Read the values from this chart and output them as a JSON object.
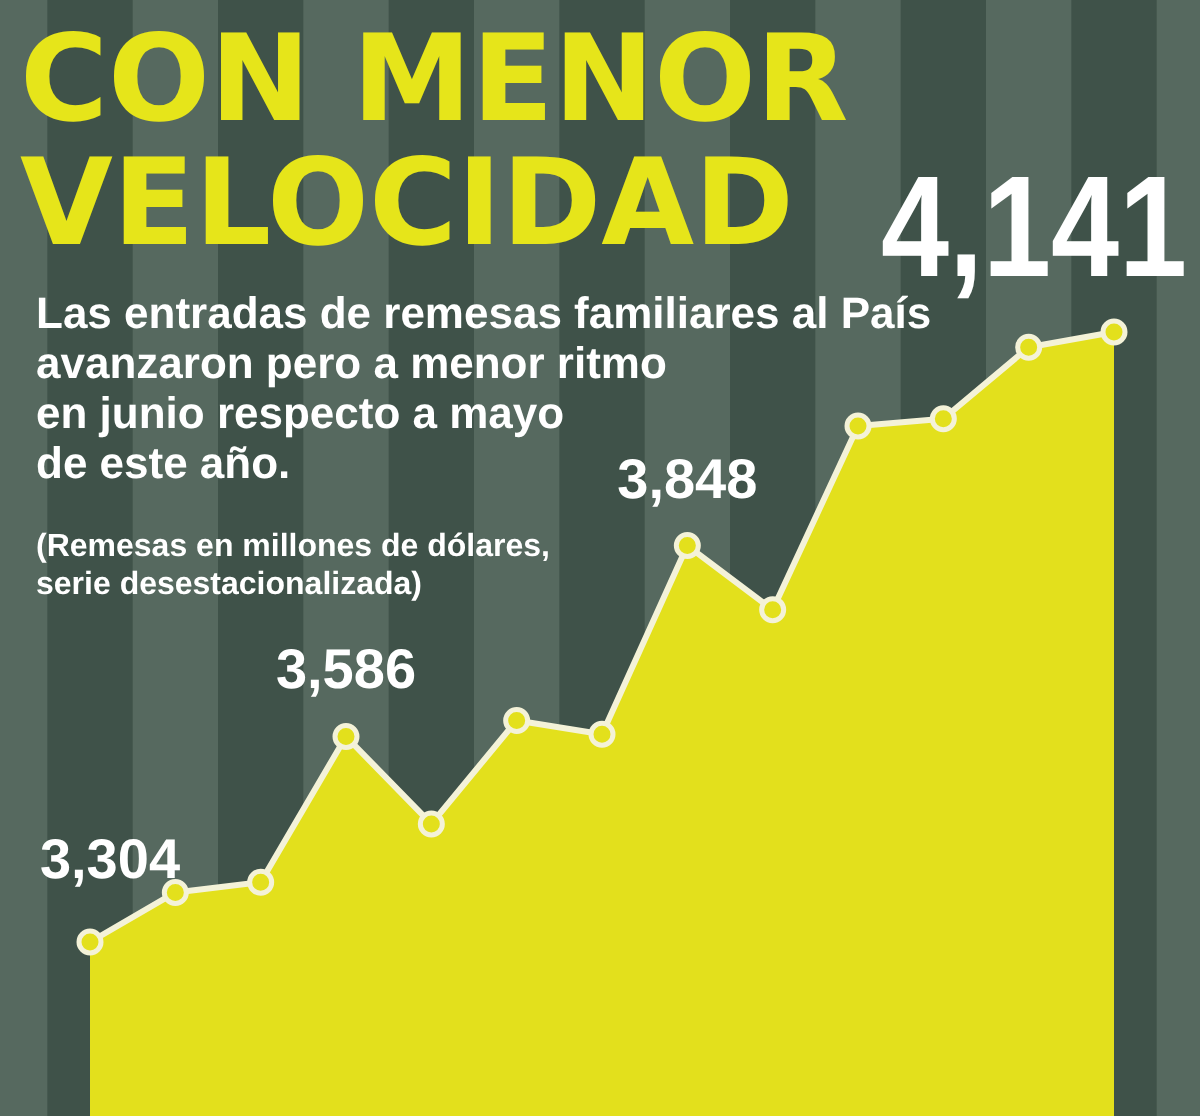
{
  "chart_data": {
    "type": "area",
    "title": "CON MENOR\nVELOCIDAD",
    "subtitle": "Las entradas de remesas familiares al País\navanzaron pero a menor ritmo\nen junio respecto a mayo\nde este año.",
    "annotations": [
      "(Remesas en millones de dólares,\nserie desestacionalizada)"
    ],
    "categories": [
      null,
      null,
      null,
      null,
      null,
      null,
      null,
      null,
      null,
      null,
      null,
      null,
      null
    ],
    "series": [
      {
        "color": "#e3e01c",
        "values": [
          3304,
          3372,
          3386,
          3586,
          3466,
          3608,
          3589,
          3848,
          3760,
          4012,
          4022,
          4120,
          4141
        ],
        "value_labels": [
          "3,304",
          null,
          null,
          "3,586",
          null,
          null,
          null,
          "3,848",
          null,
          null,
          null,
          null,
          "4,141"
        ]
      }
    ],
    "marker": "circle"
  }
}
